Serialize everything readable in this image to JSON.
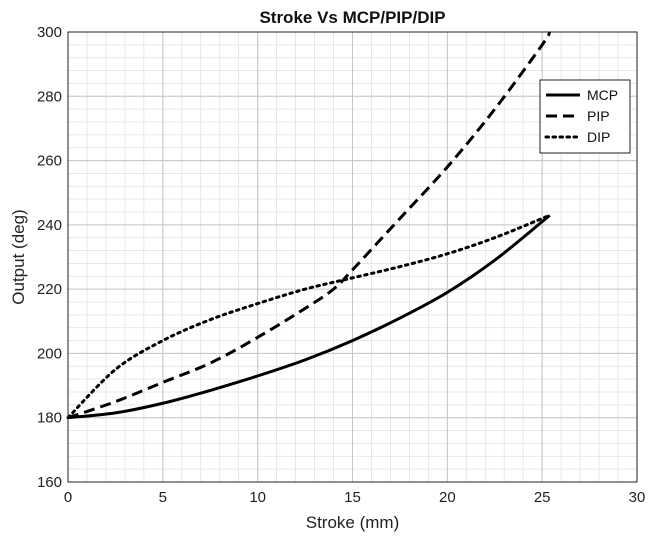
{
  "chart_data": {
    "type": "line",
    "title": "Stroke Vs MCP/PIP/DIP",
    "xlabel": "Stroke (mm)",
    "ylabel": "Output (deg)",
    "xlim": [
      0,
      30
    ],
    "ylim": [
      160,
      300
    ],
    "x_ticks": [
      0,
      5,
      10,
      15,
      20,
      25,
      30
    ],
    "y_ticks": [
      160,
      180,
      200,
      220,
      240,
      260,
      280,
      300
    ],
    "grid": "on (major and minor)",
    "legend_position": "top-right",
    "series": [
      {
        "name": "MCP",
        "line_style": "solid",
        "x": [
          0,
          2.5,
          5,
          7.5,
          10,
          12.5,
          15,
          17.5,
          20,
          22.5,
          25,
          25.4
        ],
        "y": [
          180,
          181.5,
          184.5,
          188.5,
          193,
          198,
          204,
          211,
          219,
          229,
          241,
          243
        ]
      },
      {
        "name": "PIP",
        "line_style": "dashed",
        "x": [
          0,
          2.5,
          5,
          7.5,
          10,
          12.5,
          14,
          15,
          17.5,
          20,
          22.5,
          25,
          25.4
        ],
        "y": [
          180,
          185,
          191,
          197,
          205,
          214,
          220,
          226,
          242,
          258,
          276,
          296,
          300
        ]
      },
      {
        "name": "DIP",
        "line_style": "dotted",
        "x": [
          0,
          2.5,
          5,
          7.5,
          10,
          12.5,
          15,
          17.5,
          20,
          22.5,
          25,
          25.4
        ],
        "y": [
          180,
          195,
          204,
          210.5,
          215.5,
          220,
          223.5,
          227,
          231,
          236,
          242,
          243
        ]
      }
    ]
  }
}
